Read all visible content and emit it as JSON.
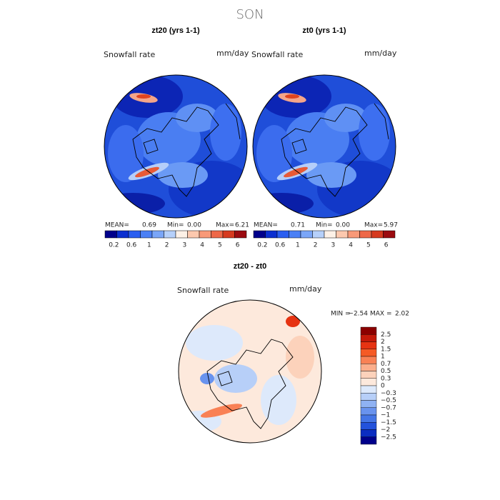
{
  "title": "SON",
  "panels": [
    {
      "title": "zt20 (yrs 1-1)",
      "variable": "Snowfall rate",
      "units": "mm/day",
      "stats": [
        "MEAN=",
        "0.69",
        "Min=",
        "0.00",
        "Max=",
        "6.21"
      ]
    },
    {
      "title": "zt0 (yrs 1-1)",
      "variable": "Snowfall rate",
      "units": "mm/day",
      "stats": [
        "MEAN=",
        "0.71",
        "Min=",
        "0.00",
        "Max=",
        "5.97"
      ]
    }
  ],
  "colorbar": {
    "labels": [
      "0.2",
      "0.6",
      "1",
      "2",
      "3",
      "4",
      "5",
      "6"
    ],
    "colors": [
      "#00008b",
      "#0b2fd0",
      "#2a5ef0",
      "#4b80f5",
      "#7aa6f8",
      "#b6d0fa",
      "#fdf1e7",
      "#fcc8ae",
      "#f89978",
      "#ee6848",
      "#d63a1f",
      "#9b0b10"
    ]
  },
  "difference": {
    "title": "zt20 - zt0",
    "variable": "Snowfall rate",
    "units": "mm/day",
    "stats": [
      "MIN =",
      "−2.54",
      "MAX =",
      "2.02"
    ],
    "colorbar": {
      "labels": [
        "2.5",
        "2",
        "1.5",
        "1",
        "0.7",
        "0.5",
        "0.3",
        "0",
        "−0.3",
        "−0.5",
        "−0.7",
        "−1",
        "−1.5",
        "−2",
        "−2.5"
      ],
      "colors": [
        "#8b0000",
        "#c41a0a",
        "#e63312",
        "#f55a25",
        "#f98155",
        "#fbae8c",
        "#fcd2bb",
        "#fde9dc",
        "#dde9fb",
        "#b7cff8",
        "#8fb2f3",
        "#6993ee",
        "#4475e6",
        "#2352db",
        "#0b2dc1",
        "#00008b"
      ]
    }
  }
}
